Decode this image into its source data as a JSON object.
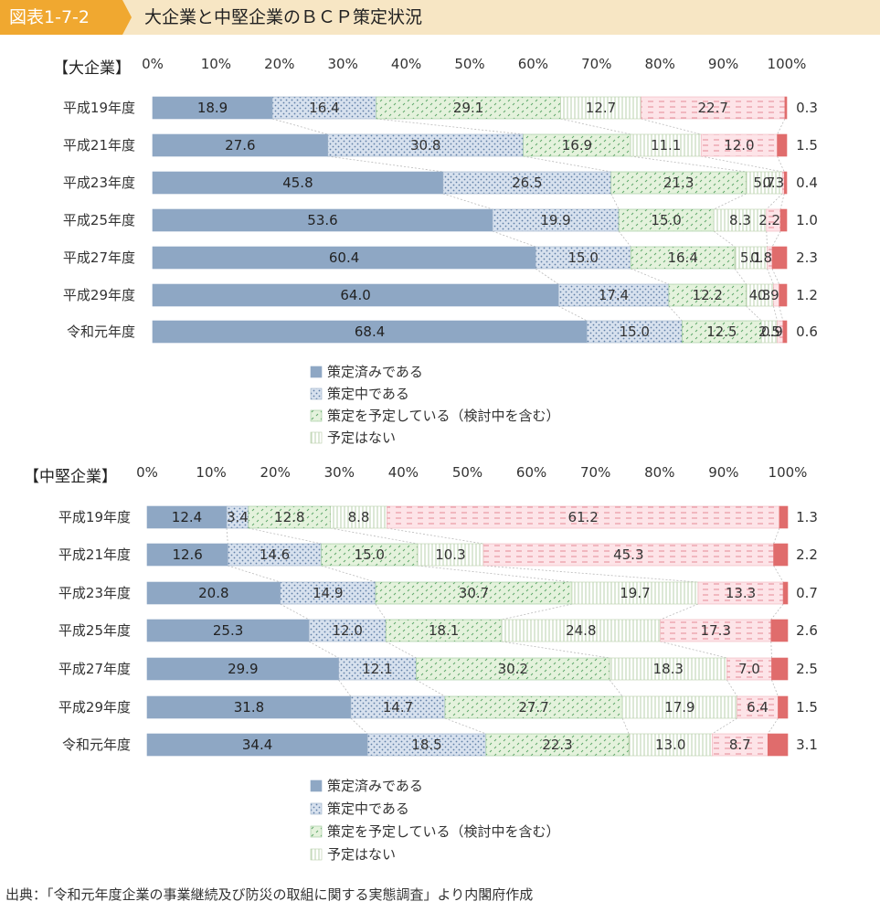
{
  "header": {
    "badge": "図表1-7-2",
    "title": "大企業と中堅企業のＢＣＰ策定状況"
  },
  "colors": {
    "header_bg": "#f7e6c4",
    "badge_bg": "#f0a830",
    "策定済み": "#8ea7c4",
    "策定中": "#d7e1ee",
    "予定している": "#e4f2dc",
    "予定はない": "#ffffff",
    "策定の予定がない": "#fde4e8",
    "最後": "#e06c6c"
  },
  "chart_data": [
    {
      "type": "bar",
      "orientation": "horizontal",
      "stacked": true,
      "title": "【大企業】",
      "x_ticks": [
        "0%",
        "10%",
        "20%",
        "30%",
        "40%",
        "50%",
        "60%",
        "70%",
        "80%",
        "90%",
        "100%"
      ],
      "xlim": [
        0,
        100
      ],
      "categories": [
        "平成19年度",
        "平成21年度",
        "平成23年度",
        "平成25年度",
        "平成27年度",
        "平成29年度",
        "令和元年度"
      ],
      "series": [
        {
          "name": "策定済みである",
          "values": [
            18.9,
            27.6,
            45.8,
            53.6,
            60.4,
            64.0,
            68.4
          ]
        },
        {
          "name": "策定中である",
          "values": [
            16.4,
            30.8,
            26.5,
            19.9,
            15.0,
            17.4,
            15.0
          ]
        },
        {
          "name": "策定を予定している（検討中を含む）",
          "values": [
            29.1,
            16.9,
            21.3,
            15.0,
            16.4,
            12.2,
            12.5
          ]
        },
        {
          "name": "予定はない",
          "values": [
            12.7,
            11.1,
            5.7,
            8.3,
            5.1,
            4.3,
            2.5
          ]
        },
        {
          "values": [
            22.7,
            12.0,
            0.3,
            2.2,
            0.8,
            0.9,
            0.9
          ]
        },
        {
          "values": [
            0.3,
            1.5,
            0.4,
            1.0,
            2.3,
            1.2,
            0.6
          ]
        }
      ],
      "bar_labels": [
        [
          "18.9",
          "16.4",
          "29.1",
          "12.7",
          "22.7",
          "0.3"
        ],
        [
          "27.6",
          "30.8",
          "16.9",
          "11.1",
          "12.0",
          "1.5"
        ],
        [
          "45.8",
          "26.5",
          "21.3",
          "5.7",
          "0.3",
          "0.4"
        ],
        [
          "53.6",
          "19.9",
          "15.0",
          "8.3",
          "2.2",
          "1.0"
        ],
        [
          "60.4",
          "15.0",
          "16.4",
          "5.1",
          "0.8",
          "2.3"
        ],
        [
          "64.0",
          "17.4",
          "12.2",
          "4.3",
          "0.9",
          "1.2"
        ],
        [
          "68.4",
          "15.0",
          "12.5",
          "2.5",
          "0.9",
          "0.6"
        ]
      ],
      "legend": [
        "策定済みである",
        "策定中である",
        "策定を予定している（検討中を含む）",
        "予定はない"
      ],
      "legend_placement": "bottom-center",
      "grid": false
    },
    {
      "type": "bar",
      "orientation": "horizontal",
      "stacked": true,
      "title": "【中堅企業】",
      "x_ticks": [
        "0%",
        "10%",
        "20%",
        "30%",
        "40%",
        "50%",
        "60%",
        "70%",
        "80%",
        "90%",
        "100%"
      ],
      "xlim": [
        0,
        100
      ],
      "categories": [
        "平成19年度",
        "平成21年度",
        "平成23年度",
        "平成25年度",
        "平成27年度",
        "平成29年度",
        "令和元年度"
      ],
      "series": [
        {
          "name": "策定済みである",
          "values": [
            12.4,
            12.6,
            20.8,
            25.3,
            29.9,
            31.8,
            34.4
          ]
        },
        {
          "name": "策定中である",
          "values": [
            3.4,
            14.6,
            14.9,
            12.0,
            12.1,
            14.7,
            18.5
          ]
        },
        {
          "name": "策定を予定している（検討中を含む）",
          "values": [
            12.8,
            15.0,
            30.7,
            18.1,
            30.2,
            27.7,
            22.3
          ]
        },
        {
          "name": "予定はない",
          "values": [
            8.8,
            10.3,
            19.7,
            24.8,
            18.3,
            17.9,
            13.0
          ]
        },
        {
          "values": [
            61.2,
            45.3,
            13.3,
            17.3,
            7.0,
            6.4,
            8.7
          ]
        },
        {
          "values": [
            1.3,
            2.2,
            0.7,
            2.6,
            2.5,
            1.5,
            3.1
          ]
        }
      ],
      "bar_labels": [
        [
          "12.4",
          "3.4",
          "12.8",
          "8.8",
          "61.2",
          "1.3"
        ],
        [
          "12.6",
          "14.6",
          "15.0",
          "10.3",
          "45.3",
          "2.2"
        ],
        [
          "20.8",
          "14.9",
          "30.7",
          "19.7",
          "13.3",
          "0.7"
        ],
        [
          "25.3",
          "12.0",
          "18.1",
          "24.8",
          "17.3",
          "2.6"
        ],
        [
          "29.9",
          "12.1",
          "30.2",
          "18.3",
          "7.0",
          "2.5"
        ],
        [
          "31.8",
          "14.7",
          "27.7",
          "17.9",
          "6.4",
          "1.5"
        ],
        [
          "34.4",
          "18.5",
          "22.3",
          "13.0",
          "8.7",
          "3.1"
        ]
      ],
      "legend": [
        "策定済みである",
        "策定中である",
        "策定を予定している（検討中を含む）",
        "予定はない"
      ],
      "legend_placement": "bottom-center",
      "grid": false
    }
  ],
  "source": "出典：「令和元年度企業の事業継続及び防災の取組に関する実態調査」より内閣府作成"
}
